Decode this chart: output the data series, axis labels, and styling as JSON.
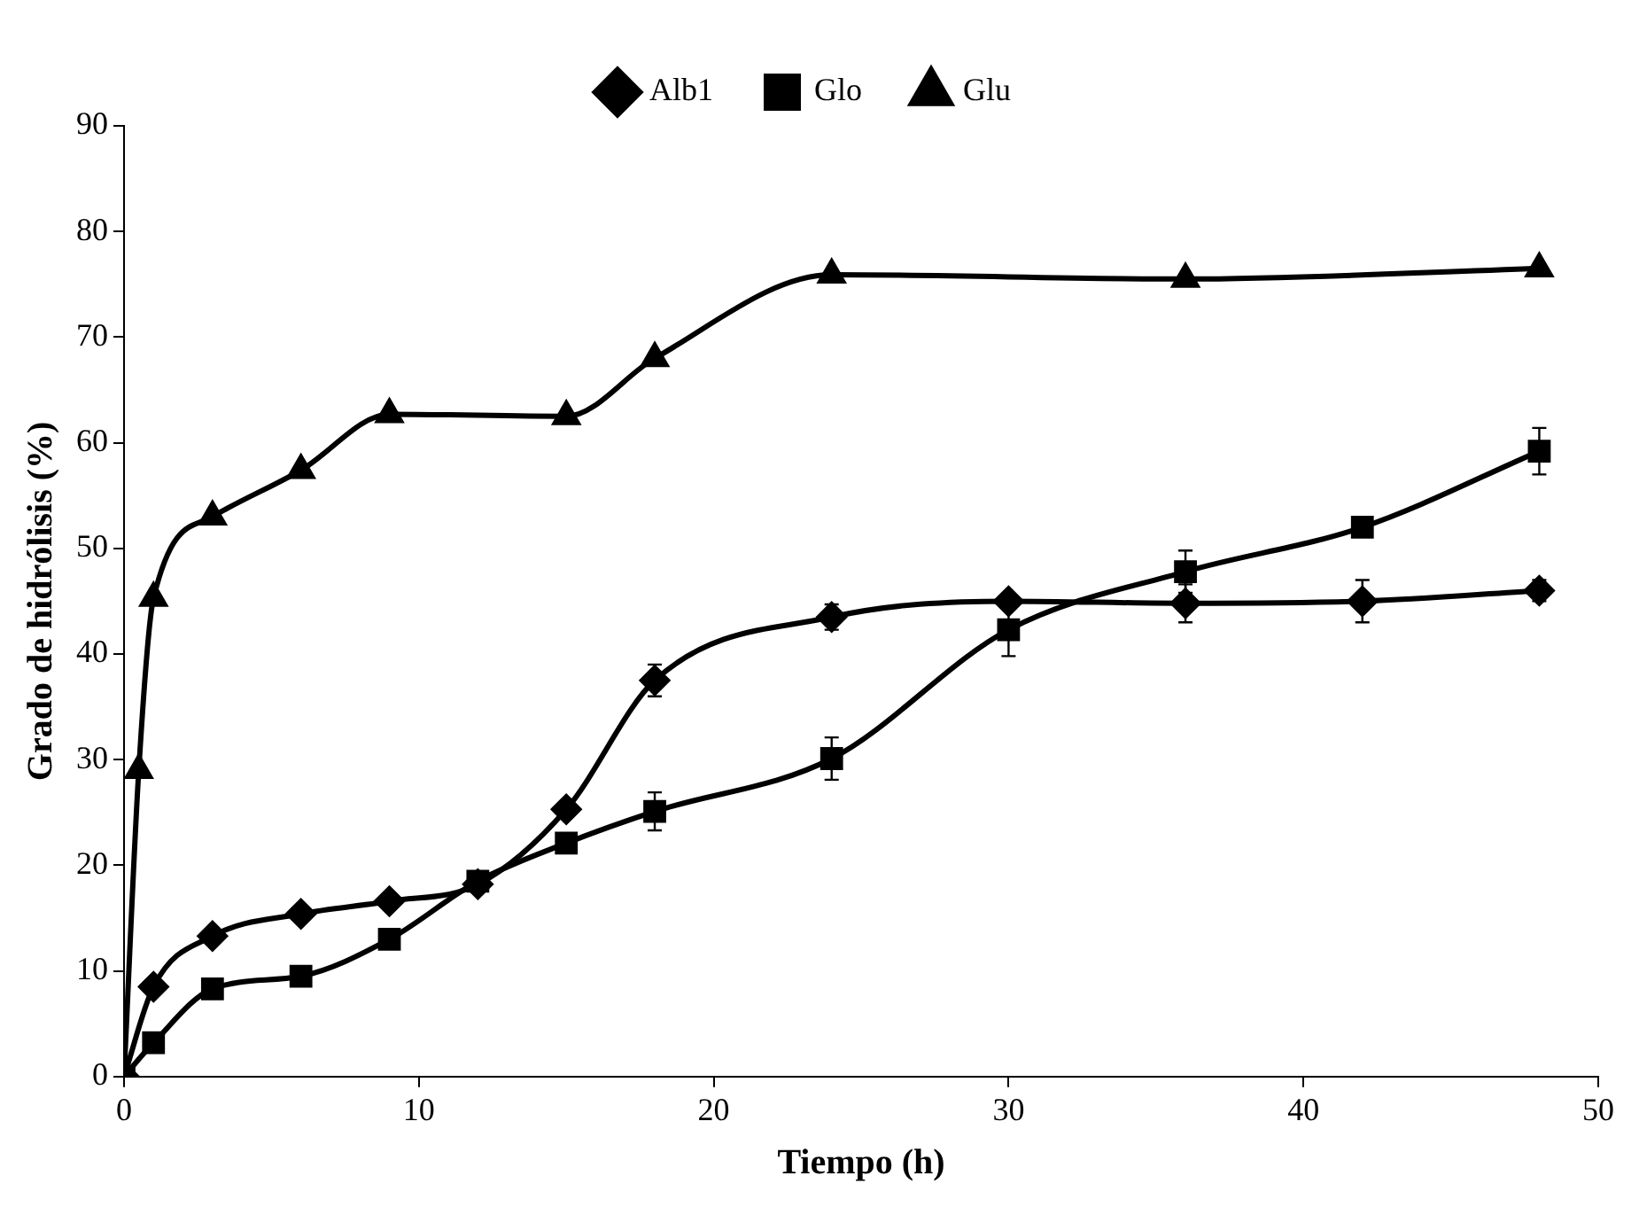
{
  "chart_data": {
    "type": "line",
    "xlabel": "Tiempo (h)",
    "ylabel": "Grado de hidrólisis (%)",
    "xlim": [
      0,
      50
    ],
    "xticks": [
      0,
      10,
      20,
      30,
      40,
      50
    ],
    "ylim": [
      0,
      90
    ],
    "yticks": [
      0,
      10,
      20,
      30,
      40,
      50,
      60,
      70,
      80,
      90
    ],
    "grid": false,
    "legend": "top",
    "line_style": "solid",
    "series": [
      {
        "name": "Alb1",
        "color": "#000000",
        "marker": "diamond",
        "x": [
          0,
          1,
          3,
          6,
          9,
          12,
          15,
          18,
          24,
          30,
          36,
          42,
          48
        ],
        "values": [
          0,
          8.5,
          13.3,
          15.4,
          16.6,
          18.2,
          25.3,
          37.5,
          43.5,
          45,
          44.8,
          45,
          46
        ],
        "errors": [
          null,
          null,
          null,
          null,
          null,
          null,
          null,
          1.5,
          1.2,
          null,
          1.8,
          2,
          1
        ]
      },
      {
        "name": "Glo",
        "color": "#000000",
        "marker": "square",
        "x": [
          0,
          1,
          3,
          6,
          9,
          12,
          15,
          18,
          24,
          30,
          36,
          42,
          48
        ],
        "values": [
          0,
          3.2,
          8.3,
          9.5,
          13,
          18.5,
          22.1,
          25.1,
          30.1,
          42.3,
          47.8,
          52,
          59.2
        ],
        "errors": [
          null,
          null,
          null,
          null,
          null,
          null,
          null,
          1.8,
          2,
          2.5,
          2,
          null,
          2.2
        ]
      },
      {
        "name": "Glu",
        "color": "#000000",
        "marker": "triangle",
        "x": [
          0,
          0.5,
          1,
          3,
          6,
          9,
          15,
          18,
          24,
          36,
          48
        ],
        "values": [
          0,
          29,
          45.3,
          53,
          57.4,
          62.7,
          62.5,
          68,
          75.9,
          75.5,
          76.5
        ]
      }
    ]
  }
}
